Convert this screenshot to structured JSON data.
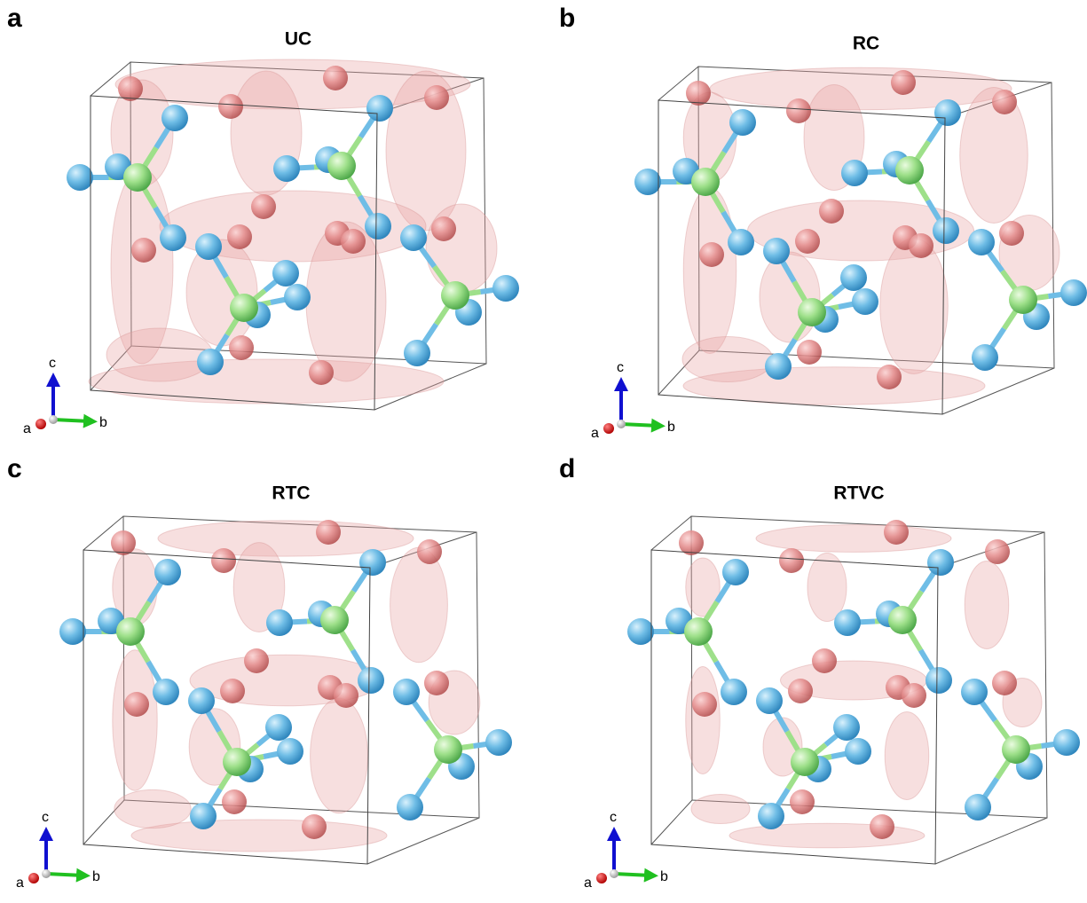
{
  "panels": [
    {
      "letter": "a",
      "title": "UC",
      "axis_labels": [
        "c",
        "a",
        "b"
      ]
    },
    {
      "letter": "b",
      "title": "RC",
      "axis_labels": [
        "c",
        "a",
        "b"
      ]
    },
    {
      "letter": "c",
      "title": "RTC",
      "axis_labels": [
        "c",
        "a",
        "b"
      ]
    },
    {
      "letter": "d",
      "title": "RTVC",
      "axis_labels": [
        "c",
        "a",
        "b"
      ]
    }
  ]
}
